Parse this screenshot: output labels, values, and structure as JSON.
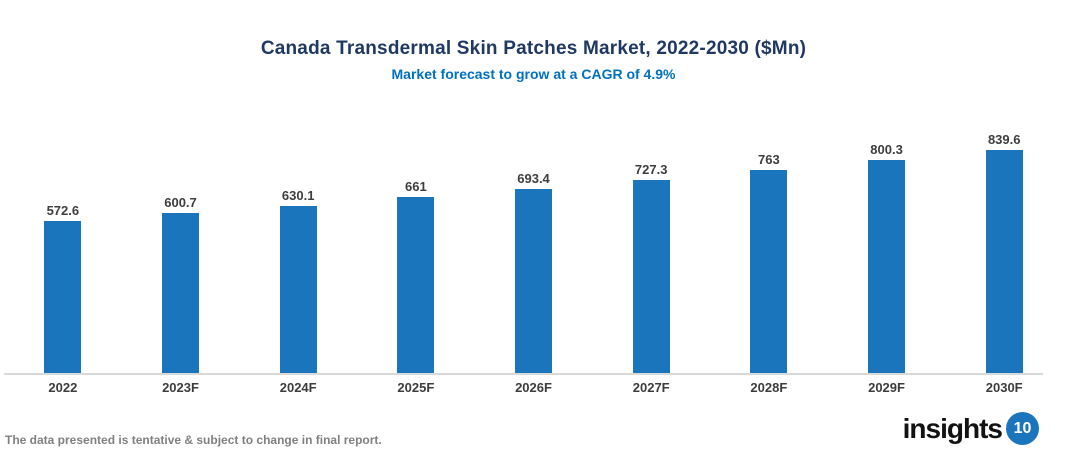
{
  "chart_data": {
    "type": "bar",
    "title": "Canada Transdermal Skin Patches Market, 2022-2030 ($Mn)",
    "subtitle": "Market forecast to grow at a CAGR of 4.9%",
    "categories": [
      "2022",
      "2023F",
      "2024F",
      "2025F",
      "2026F",
      "2027F",
      "2028F",
      "2029F",
      "2030F"
    ],
    "values": [
      572.6,
      600.7,
      630.1,
      661,
      693.4,
      727.3,
      763,
      800.3,
      839.6
    ],
    "value_labels": [
      "572.6",
      "600.7",
      "630.1",
      "661",
      "693.4",
      "727.3",
      "763",
      "800.3",
      "839.6"
    ],
    "xlabel": "",
    "ylabel": "",
    "ylim": [
      0,
      900
    ],
    "grid": false,
    "legend": false,
    "value_labels_shown": true
  },
  "footer": {
    "note": "The data presented is tentative & subject to change in final report."
  },
  "logo": {
    "text": "insights",
    "badge": "10"
  },
  "colors": {
    "title": "#1F3864",
    "subtitle": "#0070C0",
    "bar": "#1B75BC",
    "value_label": "#3D3D3D",
    "axis_line": "#D9D9D9",
    "x_label": "#3D3D3D",
    "footer_text": "#808080",
    "logo_text": "#121212",
    "logo_badge_bg": "#1B75BC",
    "logo_badge_text": "#FFFFFF",
    "background": "#FFFFFF"
  }
}
